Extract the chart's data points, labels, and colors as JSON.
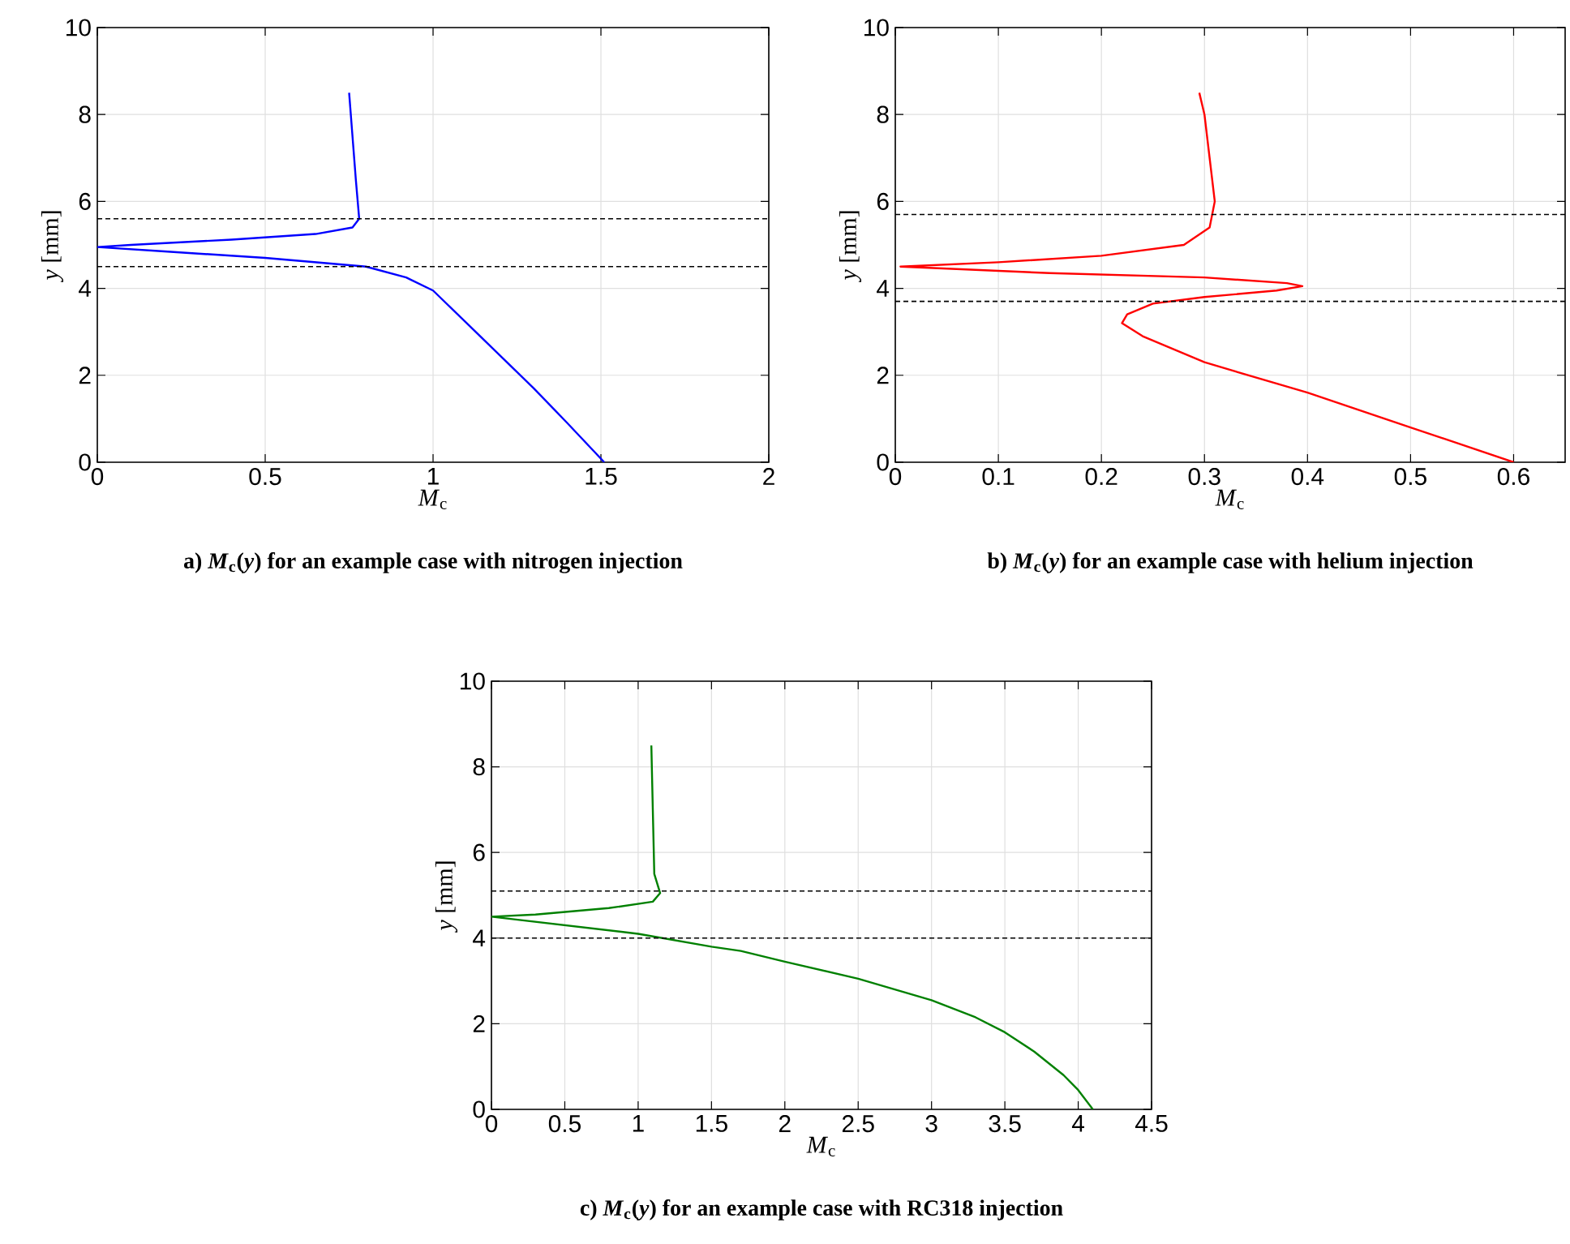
{
  "chart_data": [
    {
      "type": "line",
      "title": "a) *M*$_{c}$(*y*) for an example case with nitrogen injection",
      "xlabel": "*M*$_{c}$",
      "ylabel": "*y* [mm]",
      "xlim": [
        0,
        2
      ],
      "ylim": [
        0,
        10
      ],
      "xticks": [
        0,
        0.5,
        1,
        1.5,
        2
      ],
      "yticks": [
        0,
        2,
        4,
        6,
        8,
        10
      ],
      "grid": true,
      "series": [
        {
          "color": "#0000ff",
          "x": [
            0.75,
            0.76,
            0.77,
            0.78,
            0.76,
            0.65,
            0.4,
            0.1,
            0,
            0.2,
            0.5,
            0.8,
            0.92,
            1.0,
            1.1,
            1.2,
            1.3,
            1.4,
            1.51
          ],
          "values": [
            8.5,
            7.5,
            6.5,
            5.6,
            5.4,
            5.25,
            5.12,
            5.0,
            4.95,
            4.85,
            4.7,
            4.5,
            4.25,
            3.95,
            3.2,
            2.45,
            1.7,
            0.9,
            0
          ]
        }
      ],
      "ref_lines": [
        {
          "axis": "y",
          "value": 5.6,
          "color": "#000000",
          "line_style": "dashed"
        },
        {
          "axis": "y",
          "value": 4.5,
          "color": "#000000",
          "line_style": "dashed"
        }
      ]
    },
    {
      "type": "line",
      "title": "b) *M*$_{c}$(*y*) for an example case with helium injection",
      "xlabel": "*M*$_{c}$",
      "ylabel": "*y* [mm]",
      "xlim": [
        0,
        0.65
      ],
      "ylim": [
        0,
        10
      ],
      "xticks": [
        0,
        0.1,
        0.2,
        0.3,
        0.4,
        0.5,
        0.6
      ],
      "yticks": [
        0,
        2,
        4,
        6,
        8,
        10
      ],
      "grid": true,
      "series": [
        {
          "color": "#ff0000",
          "x": [
            0.295,
            0.3,
            0.305,
            0.31,
            0.305,
            0.28,
            0.2,
            0.1,
            0.005,
            0.15,
            0.3,
            0.38,
            0.395,
            0.37,
            0.3,
            0.25,
            0.225,
            0.22,
            0.24,
            0.3,
            0.4,
            0.5,
            0.6
          ],
          "values": [
            8.5,
            8.0,
            7.0,
            6.0,
            5.4,
            5.0,
            4.75,
            4.6,
            4.5,
            4.35,
            4.25,
            4.12,
            4.05,
            3.95,
            3.8,
            3.65,
            3.4,
            3.2,
            2.9,
            2.3,
            1.6,
            0.8,
            0
          ]
        }
      ],
      "ref_lines": [
        {
          "axis": "y",
          "value": 5.7,
          "color": "#000000",
          "line_style": "dashed"
        },
        {
          "axis": "y",
          "value": 3.7,
          "color": "#000000",
          "line_style": "dashed"
        }
      ]
    },
    {
      "type": "line",
      "title": "c) *M*$_{c}$(*y*) for an example case with RC318 injection",
      "xlabel": "*M*$_{c}$",
      "ylabel": "*y* [mm]",
      "xlim": [
        0,
        4.5
      ],
      "ylim": [
        0,
        10
      ],
      "xticks": [
        0,
        0.5,
        1,
        1.5,
        2,
        2.5,
        3,
        3.5,
        4,
        4.5
      ],
      "yticks": [
        0,
        2,
        4,
        6,
        8,
        10
      ],
      "grid": true,
      "series": [
        {
          "color": "#008000",
          "x": [
            1.09,
            1.1,
            1.11,
            1.15,
            1.1,
            0.8,
            0.3,
            0,
            0.5,
            1.0,
            1.5,
            1.7,
            2.0,
            2.5,
            3.0,
            3.3,
            3.5,
            3.7,
            3.9,
            4.0,
            4.1
          ],
          "values": [
            8.5,
            7,
            5.5,
            5.05,
            4.85,
            4.7,
            4.55,
            4.5,
            4.3,
            4.1,
            3.8,
            3.7,
            3.45,
            3.05,
            2.55,
            2.15,
            1.8,
            1.35,
            0.8,
            0.45,
            0
          ]
        }
      ],
      "ref_lines": [
        {
          "axis": "y",
          "value": 5.1,
          "color": "#000000",
          "line_style": "dashed"
        },
        {
          "axis": "y",
          "value": 4.0,
          "color": "#000000",
          "line_style": "dashed"
        }
      ]
    }
  ]
}
